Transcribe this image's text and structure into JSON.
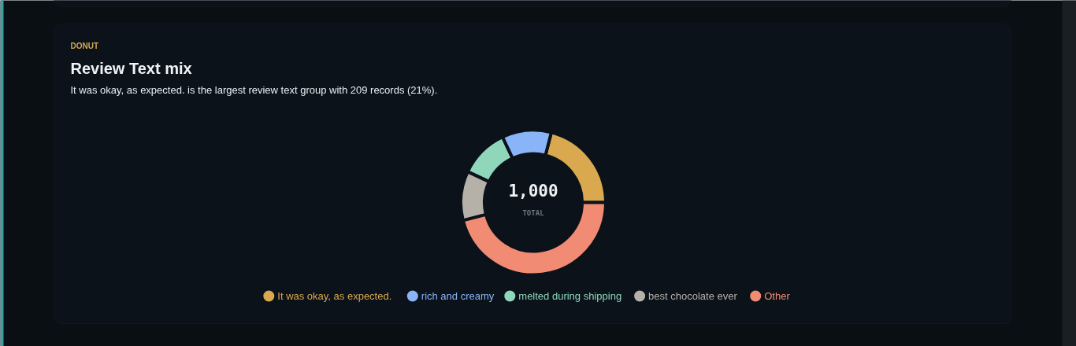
{
  "chart_data": {
    "type": "donut",
    "title": "Review Text mix",
    "subtitle": "It was okay, as expected. is the largest review text group with 209 records (21%).",
    "annotations": [
      "DONUT",
      "1,000",
      "TOTAL"
    ],
    "categories": [
      "It was okay, as expected.",
      "rich and creamy",
      "melted during shipping",
      "best chocolate ever",
      "Other"
    ],
    "values": [
      21,
      11,
      11,
      11,
      46
    ],
    "colors": [
      "#d9a84f",
      "#8ab4f8",
      "#8fd6bb",
      "#b5b1a8",
      "#f28b74"
    ],
    "legend": "bottom"
  }
}
